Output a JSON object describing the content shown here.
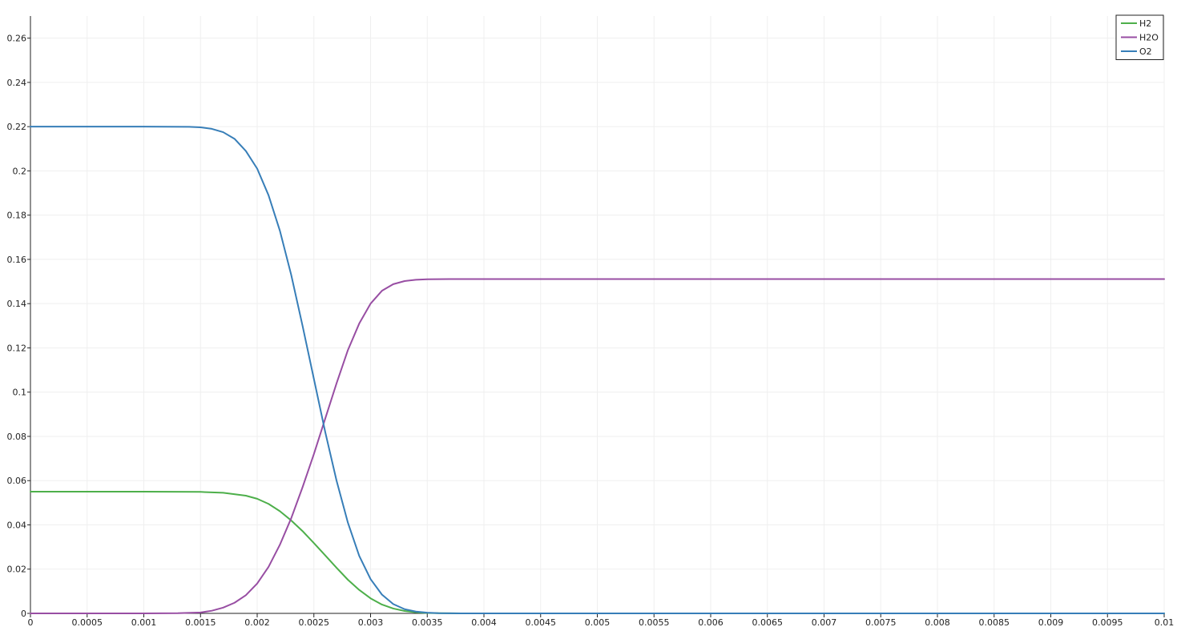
{
  "chart_data": {
    "type": "line",
    "title": "",
    "xlabel": "",
    "ylabel": "",
    "xlim": [
      0,
      0.01
    ],
    "ylim": [
      0,
      0.27
    ],
    "x_ticks": [
      "0",
      "0.0005",
      "0.001",
      "0.0015",
      "0.002",
      "0.0025",
      "0.003",
      "0.0035",
      "0.004",
      "0.0045",
      "0.005",
      "0.0055",
      "0.006",
      "0.0065",
      "0.007",
      "0.0075",
      "0.008",
      "0.0085",
      "0.009",
      "0.0095",
      "0.01"
    ],
    "y_ticks": [
      "0",
      "0.02",
      "0.04",
      "0.06",
      "0.08",
      "0.1",
      "0.12",
      "0.14",
      "0.16",
      "0.18",
      "0.2",
      "0.22",
      "0.24",
      "0.26"
    ],
    "grid": true,
    "legend_position": "top-right",
    "series": [
      {
        "name": "H2",
        "color": "#4daf4a",
        "points": [
          [
            0,
            0.055
          ],
          [
            0.0005,
            0.055
          ],
          [
            0.001,
            0.055
          ],
          [
            0.0015,
            0.0549
          ],
          [
            0.0017,
            0.0545
          ],
          [
            0.0019,
            0.0532
          ],
          [
            0.002,
            0.0518
          ],
          [
            0.0021,
            0.0495
          ],
          [
            0.0022,
            0.0462
          ],
          [
            0.0023,
            0.042
          ],
          [
            0.0024,
            0.0372
          ],
          [
            0.0025,
            0.0318
          ],
          [
            0.0026,
            0.0262
          ],
          [
            0.0027,
            0.0206
          ],
          [
            0.0028,
            0.0152
          ],
          [
            0.0029,
            0.0106
          ],
          [
            0.003,
            0.0068
          ],
          [
            0.0031,
            0.004
          ],
          [
            0.0032,
            0.0022
          ],
          [
            0.0033,
            0.0011
          ],
          [
            0.0034,
            0.0005
          ],
          [
            0.0035,
            0.0002
          ],
          [
            0.0036,
            0.0001
          ],
          [
            0.0038,
            0
          ],
          [
            0.004,
            0
          ],
          [
            0.005,
            0
          ],
          [
            0.006,
            0
          ],
          [
            0.007,
            0
          ],
          [
            0.008,
            0
          ],
          [
            0.009,
            0
          ],
          [
            0.01,
            0
          ]
        ]
      },
      {
        "name": "H2O",
        "color": "#984ea3",
        "points": [
          [
            0,
            0
          ],
          [
            0.0005,
            0
          ],
          [
            0.001,
            0
          ],
          [
            0.0013,
            0.0001
          ],
          [
            0.0015,
            0.0004
          ],
          [
            0.0016,
            0.0012
          ],
          [
            0.0017,
            0.0026
          ],
          [
            0.0018,
            0.0048
          ],
          [
            0.0019,
            0.0082
          ],
          [
            0.002,
            0.0135
          ],
          [
            0.0021,
            0.021
          ],
          [
            0.0022,
            0.031
          ],
          [
            0.0023,
            0.043
          ],
          [
            0.0024,
            0.057
          ],
          [
            0.0025,
            0.072
          ],
          [
            0.0026,
            0.088
          ],
          [
            0.0027,
            0.104
          ],
          [
            0.0028,
            0.119
          ],
          [
            0.0029,
            0.131
          ],
          [
            0.003,
            0.14
          ],
          [
            0.0031,
            0.1458
          ],
          [
            0.0032,
            0.1488
          ],
          [
            0.0033,
            0.1502
          ],
          [
            0.0034,
            0.1508
          ],
          [
            0.0035,
            0.151
          ],
          [
            0.0037,
            0.1511
          ],
          [
            0.004,
            0.1511
          ],
          [
            0.005,
            0.1511
          ],
          [
            0.006,
            0.1511
          ],
          [
            0.007,
            0.1511
          ],
          [
            0.008,
            0.1511
          ],
          [
            0.009,
            0.1511
          ],
          [
            0.01,
            0.1511
          ]
        ]
      },
      {
        "name": "O2",
        "color": "#377eb8",
        "points": [
          [
            0,
            0.22
          ],
          [
            0.0005,
            0.22
          ],
          [
            0.001,
            0.22
          ],
          [
            0.0014,
            0.2199
          ],
          [
            0.0015,
            0.2197
          ],
          [
            0.0016,
            0.219
          ],
          [
            0.0017,
            0.2175
          ],
          [
            0.0018,
            0.2145
          ],
          [
            0.0019,
            0.209
          ],
          [
            0.002,
            0.201
          ],
          [
            0.0021,
            0.189
          ],
          [
            0.0022,
            0.173
          ],
          [
            0.0023,
            0.153
          ],
          [
            0.0024,
            0.13
          ],
          [
            0.0025,
            0.106
          ],
          [
            0.0026,
            0.082
          ],
          [
            0.0027,
            0.06
          ],
          [
            0.0028,
            0.041
          ],
          [
            0.0029,
            0.026
          ],
          [
            0.003,
            0.0155
          ],
          [
            0.0031,
            0.0085
          ],
          [
            0.0032,
            0.0042
          ],
          [
            0.0033,
            0.0019
          ],
          [
            0.0034,
            0.0008
          ],
          [
            0.0035,
            0.0003
          ],
          [
            0.0036,
            0.0001
          ],
          [
            0.0038,
            0
          ],
          [
            0.004,
            0
          ],
          [
            0.005,
            0
          ],
          [
            0.006,
            0
          ],
          [
            0.007,
            0
          ],
          [
            0.008,
            0
          ],
          [
            0.009,
            0
          ],
          [
            0.01,
            0
          ]
        ]
      }
    ]
  }
}
